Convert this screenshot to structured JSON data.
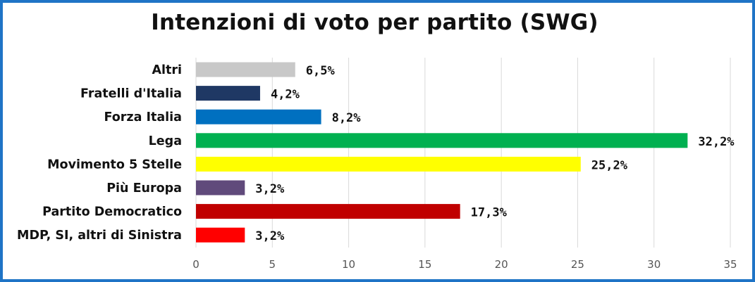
{
  "chart_data": {
    "type": "bar",
    "orientation": "horizontal",
    "title": "Intenzioni di voto per partito (SWG)",
    "categories": [
      "Altri",
      "Fratelli d'Italia",
      "Forza Italia",
      "Lega",
      "Movimento 5 Stelle",
      "Più Europa",
      "Partito Democratico",
      "MDP, SI, altri di Sinistra"
    ],
    "values": [
      6.5,
      4.2,
      8.2,
      32.2,
      25.2,
      3.2,
      17.3,
      3.2
    ],
    "data_labels": [
      "6,5%",
      "4,2%",
      "8,2%",
      "32,2%",
      "25,2%",
      "3,2%",
      "17,3%",
      "3,2%"
    ],
    "colors": [
      "#c8c8c8",
      "#1f3864",
      "#0070c0",
      "#00b050",
      "#ffff00",
      "#604a7b",
      "#c00000",
      "#ff0000"
    ],
    "xlim": [
      0,
      35
    ],
    "xticks": [
      0,
      5,
      10,
      15,
      20,
      25,
      30,
      35
    ],
    "xtick_labels": [
      "0",
      "5",
      "10",
      "15",
      "20",
      "25",
      "30",
      "35"
    ],
    "grid": "vertical",
    "legend": "none",
    "frame_color": "#1f74c6"
  }
}
